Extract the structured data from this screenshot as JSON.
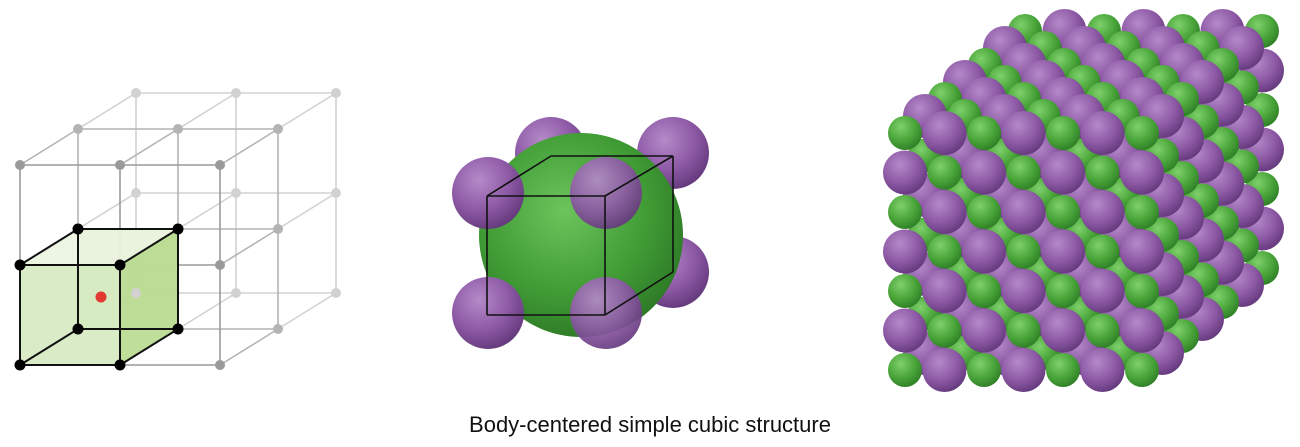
{
  "caption": "Body-centered simple cubic structure",
  "colors": {
    "purple": "#8e5aa6",
    "green": "#4aa63a",
    "lattice_gray": "#9a9a9a",
    "lattice_black": "#111111",
    "unit_cell_fill": "#c8e2a8",
    "center_point": "#e23a33"
  },
  "panels": [
    {
      "name": "lattice-diagram",
      "shows": "lattice points with highlighted unit cell and body-centre point"
    },
    {
      "name": "unit-cell-model",
      "shows": "one green sphere at body centre, purple spheres at cube corners"
    },
    {
      "name": "crystal-model",
      "shows": "extended crystal of alternating purple and green spheres"
    }
  ]
}
